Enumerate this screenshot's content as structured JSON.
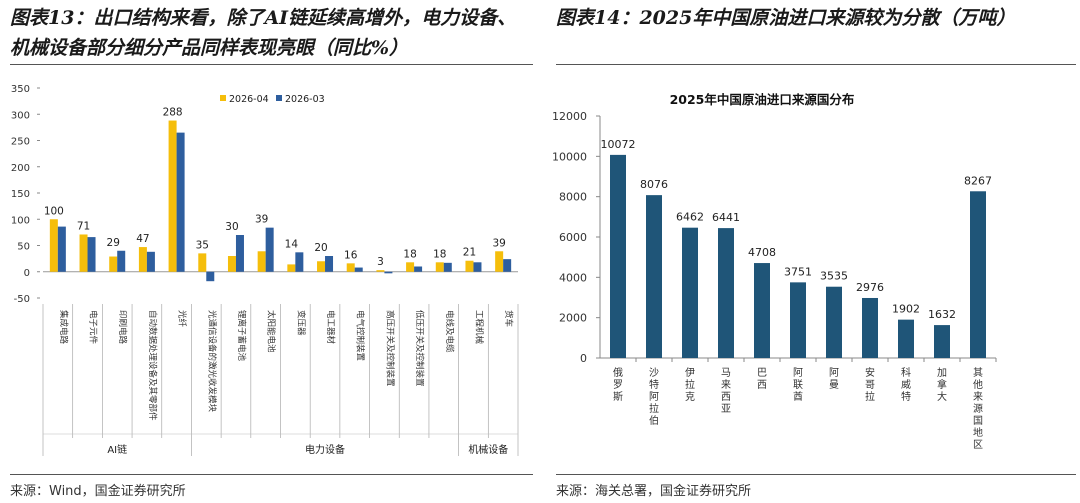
{
  "left": {
    "title": "图表13：出口结构来看，除了AI链延续高增外，电力设备、机械设备部分细分产品同样表现亮眼（同比%）",
    "source": "来源：Wind，国金证券研究所",
    "chart_data": {
      "type": "bar",
      "ylim": [
        -50,
        350
      ],
      "yticks": [
        -50,
        0,
        50,
        100,
        150,
        200,
        250,
        300,
        350
      ],
      "legend_position": "top-center",
      "colors": {
        "2026-04": "#F5BE0B",
        "2026-03": "#2E5E9E"
      },
      "categories": [
        "集成电路",
        "电子元件",
        "印刷电路",
        "自动数据处理设备及其零部件",
        "光纤",
        "光通信设备的激光收发模块",
        "锂离子蓄电池",
        "太阳能电池",
        "变压器",
        "电工器材",
        "电气控制装置",
        "高压开关及控制装置",
        "低压开关及控制装置",
        "电线及电缆",
        "工程机械",
        "货车"
      ],
      "series": [
        {
          "name": "2026-04",
          "values": [
            100,
            71,
            29,
            47,
            288,
            35,
            30,
            39,
            14,
            20,
            16,
            3,
            18,
            18,
            21,
            39
          ]
        },
        {
          "name": "2026-03",
          "values": [
            86,
            66,
            40,
            38,
            265,
            -18,
            70,
            84,
            37,
            30,
            8,
            -3,
            10,
            17,
            18,
            24
          ]
        }
      ],
      "data_labels": [
        "100",
        "71",
        "29",
        "47",
        "288",
        "35",
        "30",
        "39",
        "14",
        "20",
        "16",
        "3",
        "18",
        "18",
        "21",
        "39"
      ],
      "groups": [
        {
          "label": "AI链",
          "start": 0,
          "end": 4
        },
        {
          "label": "电力设备",
          "start": 5,
          "end": 13
        },
        {
          "label": "机械设备",
          "start": 14,
          "end": 15
        }
      ]
    }
  },
  "right": {
    "title": "图表14：2025年中国原油进口来源较为分散（万吨）",
    "source": "来源：海关总署，国金证券研究所",
    "chart_data": {
      "type": "bar",
      "title": "2025年中国原油进口来源国分布",
      "ylim": [
        0,
        12000
      ],
      "yticks": [
        0,
        2000,
        4000,
        6000,
        8000,
        10000,
        12000
      ],
      "color": "#1F5578",
      "categories": [
        "俄罗斯",
        "沙特阿拉伯",
        "伊拉克",
        "马来西亚",
        "巴西",
        "阿联酋",
        "阿曼",
        "安哥拉",
        "科威特",
        "加拿大",
        "其他来源国地区"
      ],
      "values": [
        10072,
        8076,
        6462,
        6441,
        4708,
        3751,
        3535,
        2976,
        1902,
        1632,
        8267
      ]
    }
  }
}
